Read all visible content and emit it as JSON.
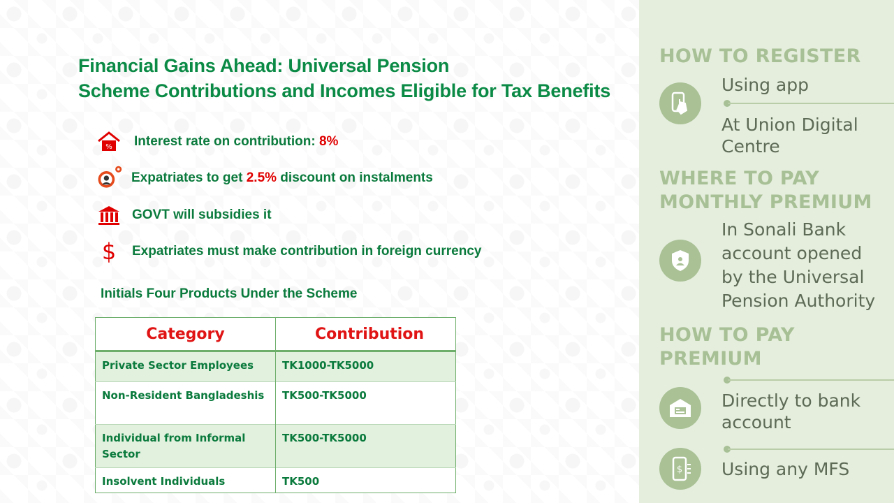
{
  "title": {
    "line1": "Financial Gains Ahead: Universal Pension",
    "line2": "Scheme Contributions and Incomes Eligible for Tax Benefits"
  },
  "bullets": [
    {
      "icon": "percent-house-icon",
      "before": "Interest rate on contribution: ",
      "highlight": "8%",
      "after": ""
    },
    {
      "icon": "person-gear-icon",
      "before": "Expatriates to get ",
      "highlight": "2.5%",
      "after": " discount on instalments"
    },
    {
      "icon": "bank-building-icon",
      "before": "GOVT will subsidies it",
      "highlight": "",
      "after": ""
    },
    {
      "icon": "dollar-sign-icon",
      "before": "Expatriates must make contribution in foreign currency",
      "highlight": "",
      "after": ""
    }
  ],
  "products": {
    "title": "Initials Four Products Under the Scheme",
    "headers": [
      "Category",
      "Contribution"
    ],
    "rows": [
      {
        "category": "Private Sector Employees",
        "contribution": "TK1000-TK5000"
      },
      {
        "category": "Non-Resident Bangladeshis",
        "contribution": "TK500-TK5000"
      },
      {
        "category_line1": "Individual from Informal",
        "category_line2": "Sector",
        "contribution": "TK500-TK5000"
      },
      {
        "category": "Insolvent Individuals",
        "contribution": "TK500"
      }
    ]
  },
  "sidebar": {
    "register_heading": "HOW TO REGISTER",
    "register_option1": "Using app",
    "register_option2_line1": "At Union Digital",
    "register_option2_line2": "Centre",
    "pay_where_heading_line1": "WHERE TO PAY",
    "pay_where_heading_line2": "MONTHLY PREMIUM",
    "pay_where_text": [
      "In Sonali Bank",
      "account opened",
      "by the Universal",
      "Pension Authority"
    ],
    "how_pay_heading_line1": "HOW TO PAY",
    "how_pay_heading_line2": "PREMIUM",
    "how_pay_option1_line1": "Directly to bank",
    "how_pay_option1_line2": "account",
    "how_pay_option2": "Using any MFS"
  },
  "colors": {
    "title_green": "#0a8a45",
    "highlight_red": "#e00000",
    "panel_bg": "#e5eedd",
    "panel_heading": "#a8c095"
  }
}
